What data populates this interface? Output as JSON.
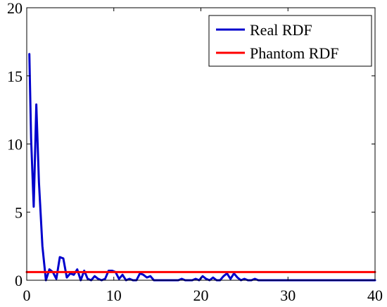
{
  "chart_data": {
    "type": "line",
    "xlim": [
      0,
      40
    ],
    "ylim": [
      0,
      20
    ],
    "xticks": [
      0,
      10,
      20,
      30,
      40
    ],
    "yticks": [
      0,
      5,
      10,
      15,
      20
    ],
    "grid": false,
    "legend_position": "top-right",
    "series": [
      {
        "name": "Real RDF",
        "color": "#0000CC",
        "x": [
          0.3,
          0.5,
          0.8,
          1.1,
          1.4,
          1.8,
          2.2,
          2.6,
          3.0,
          3.4,
          3.8,
          4.2,
          4.6,
          5.0,
          5.4,
          5.8,
          6.2,
          6.6,
          7.0,
          7.4,
          7.8,
          8.2,
          8.6,
          9.0,
          9.4,
          9.8,
          10.2,
          10.6,
          11.0,
          11.4,
          11.8,
          12.2,
          12.6,
          13.0,
          13.4,
          13.8,
          14.2,
          14.6,
          15.0,
          15.4,
          15.8,
          16.2,
          16.6,
          17.0,
          17.4,
          17.8,
          18.2,
          18.6,
          19.0,
          19.4,
          19.8,
          20.2,
          20.6,
          21.0,
          21.4,
          21.8,
          22.2,
          22.6,
          23.0,
          23.4,
          23.8,
          24.2,
          24.6,
          25.0,
          25.4,
          25.8,
          26.2,
          26.6,
          27.0,
          27.4,
          27.8,
          28.2,
          28.6,
          29.0,
          30.0,
          32.0,
          35.0,
          40.0
        ],
        "y": [
          16.6,
          10.4,
          5.4,
          12.9,
          7.2,
          2.5,
          0.0,
          0.8,
          0.6,
          0.1,
          1.7,
          1.6,
          0.2,
          0.5,
          0.4,
          0.8,
          0.0,
          0.7,
          0.1,
          0.0,
          0.3,
          0.1,
          0.0,
          0.1,
          0.7,
          0.7,
          0.6,
          0.1,
          0.4,
          0.0,
          0.1,
          0.0,
          0.0,
          0.5,
          0.4,
          0.2,
          0.3,
          0.0,
          0.0,
          0.0,
          0.0,
          0.0,
          0.0,
          0.0,
          0.0,
          0.1,
          0.0,
          0.0,
          0.0,
          0.1,
          0.0,
          0.3,
          0.1,
          0.0,
          0.2,
          0.0,
          0.0,
          0.3,
          0.5,
          0.1,
          0.5,
          0.2,
          0.0,
          0.1,
          0.0,
          0.0,
          0.1,
          0.0,
          0.0,
          0.0,
          0.0,
          0.0,
          0.0,
          0.0,
          0.0,
          0.0,
          0.0,
          0.0
        ]
      },
      {
        "name": "Phantom RDF",
        "color": "#FF0000",
        "x": [
          0,
          40
        ],
        "y": [
          0.6,
          0.6
        ]
      }
    ]
  }
}
